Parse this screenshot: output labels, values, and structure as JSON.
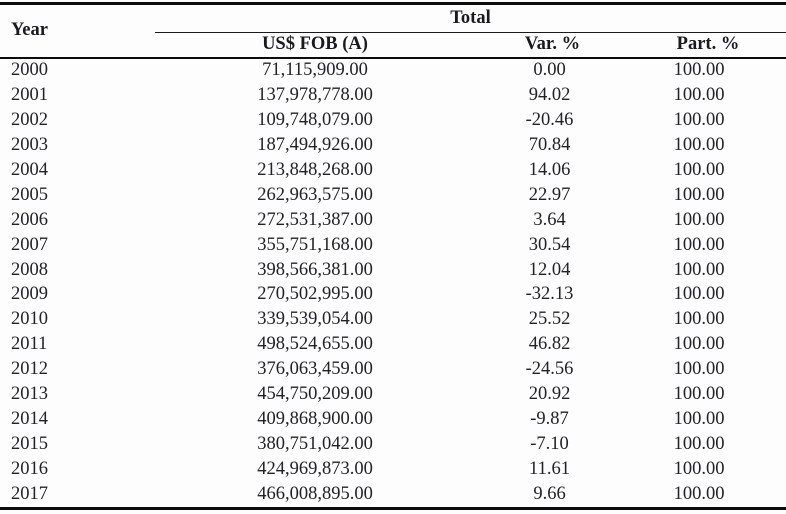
{
  "colors": {
    "text": "#222226",
    "rule": "#0c0c0c",
    "background": "#fdfdfd"
  },
  "table": {
    "corner_header": "Year",
    "group_header": "Total",
    "columns": {
      "fob": "US$ FOB (A)",
      "var": "Var. %",
      "part": "Part. %"
    },
    "rows": [
      {
        "year": "2000",
        "fob": "71,115,909.00",
        "var": "0.00",
        "part": "100.00"
      },
      {
        "year": "2001",
        "fob": "137,978,778.00",
        "var": "94.02",
        "part": "100.00"
      },
      {
        "year": "2002",
        "fob": "109,748,079.00",
        "var": "-20.46",
        "part": "100.00"
      },
      {
        "year": "2003",
        "fob": "187,494,926.00",
        "var": "70.84",
        "part": "100.00"
      },
      {
        "year": "2004",
        "fob": "213,848,268.00",
        "var": "14.06",
        "part": "100.00"
      },
      {
        "year": "2005",
        "fob": "262,963,575.00",
        "var": "22.97",
        "part": "100.00"
      },
      {
        "year": "2006",
        "fob": "272,531,387.00",
        "var": "3.64",
        "part": "100.00"
      },
      {
        "year": "2007",
        "fob": "355,751,168.00",
        "var": "30.54",
        "part": "100.00"
      },
      {
        "year": "2008",
        "fob": "398,566,381.00",
        "var": "12.04",
        "part": "100.00"
      },
      {
        "year": "2009",
        "fob": "270,502,995.00",
        "var": "-32.13",
        "part": "100.00"
      },
      {
        "year": "2010",
        "fob": "339,539,054.00",
        "var": "25.52",
        "part": "100.00"
      },
      {
        "year": "2011",
        "fob": "498,524,655.00",
        "var": "46.82",
        "part": "100.00"
      },
      {
        "year": "2012",
        "fob": "376,063,459.00",
        "var": "-24.56",
        "part": "100.00"
      },
      {
        "year": "2013",
        "fob": "454,750,209.00",
        "var": "20.92",
        "part": "100.00"
      },
      {
        "year": "2014",
        "fob": "409,868,900.00",
        "var": "-9.87",
        "part": "100.00"
      },
      {
        "year": "2015",
        "fob": "380,751,042.00",
        "var": "-7.10",
        "part": "100.00"
      },
      {
        "year": "2016",
        "fob": "424,969,873.00",
        "var": "11.61",
        "part": "100.00"
      },
      {
        "year": "2017",
        "fob": "466,008,895.00",
        "var": "9.66",
        "part": "100.00"
      }
    ]
  }
}
